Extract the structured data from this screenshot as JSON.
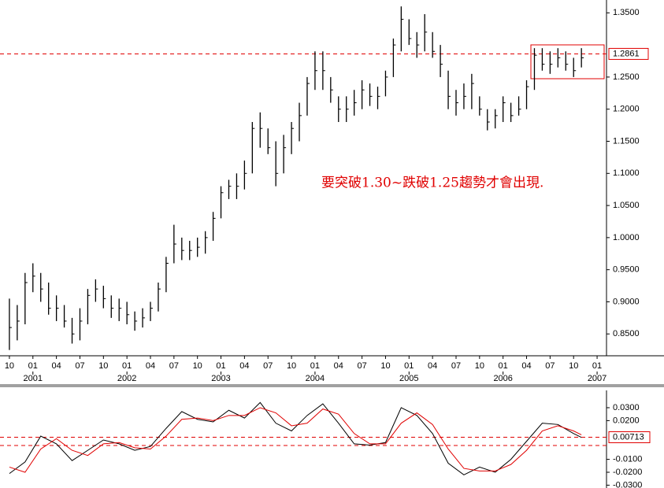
{
  "chart_data": [
    {
      "type": "ohlc",
      "annotation": "要突破1.30~跌破1.25趨勢才會出現.",
      "x": [
        0,
        1,
        2,
        3,
        4,
        5,
        6,
        7,
        8,
        9,
        10,
        11,
        12,
        13,
        14,
        15,
        16,
        17,
        18,
        19,
        20,
        21,
        22,
        23,
        24,
        25,
        26,
        27,
        28,
        29,
        30,
        31,
        32,
        33,
        34,
        35,
        36,
        37,
        38,
        39,
        40,
        41,
        42,
        43,
        44,
        45,
        46,
        47,
        48,
        49,
        50,
        51,
        52,
        53,
        54,
        55,
        56,
        57,
        58,
        59,
        60,
        61,
        62,
        63,
        64,
        65,
        66,
        67,
        68,
        69,
        70,
        71,
        72,
        73
      ],
      "high": [
        0.905,
        0.895,
        0.945,
        0.96,
        0.945,
        0.93,
        0.91,
        0.895,
        0.875,
        0.89,
        0.92,
        0.935,
        0.925,
        0.91,
        0.905,
        0.9,
        0.885,
        0.89,
        0.9,
        0.93,
        0.97,
        1.02,
        1.0,
        0.995,
        1.0,
        1.01,
        1.04,
        1.08,
        1.09,
        1.1,
        1.12,
        1.18,
        1.195,
        1.17,
        1.15,
        1.16,
        1.18,
        1.21,
        1.25,
        1.29,
        1.29,
        1.25,
        1.22,
        1.22,
        1.23,
        1.245,
        1.24,
        1.235,
        1.26,
        1.31,
        1.36,
        1.34,
        1.32,
        1.348,
        1.32,
        1.3,
        1.26,
        1.23,
        1.24,
        1.255,
        1.22,
        1.2,
        1.2,
        1.22,
        1.21,
        1.22,
        1.245,
        1.295,
        1.295,
        1.29,
        1.295,
        1.29,
        1.28,
        1.295
      ],
      "low": [
        0.825,
        0.84,
        0.865,
        0.915,
        0.9,
        0.88,
        0.87,
        0.86,
        0.835,
        0.84,
        0.865,
        0.9,
        0.89,
        0.875,
        0.87,
        0.865,
        0.855,
        0.86,
        0.87,
        0.885,
        0.915,
        0.96,
        0.965,
        0.965,
        0.97,
        0.975,
        0.995,
        1.03,
        1.06,
        1.06,
        1.075,
        1.1,
        1.14,
        1.13,
        1.08,
        1.1,
        1.13,
        1.15,
        1.19,
        1.23,
        1.23,
        1.21,
        1.18,
        1.18,
        1.19,
        1.2,
        1.205,
        1.2,
        1.22,
        1.25,
        1.29,
        1.3,
        1.28,
        1.29,
        1.28,
        1.25,
        1.2,
        1.19,
        1.2,
        1.2,
        1.19,
        1.167,
        1.17,
        1.18,
        1.18,
        1.19,
        1.2,
        1.23,
        1.26,
        1.255,
        1.265,
        1.26,
        1.25,
        1.265
      ],
      "close": [
        0.86,
        0.87,
        0.93,
        0.94,
        0.92,
        0.89,
        0.89,
        0.87,
        0.85,
        0.87,
        0.91,
        0.92,
        0.905,
        0.89,
        0.89,
        0.88,
        0.87,
        0.875,
        0.89,
        0.92,
        0.96,
        0.99,
        0.98,
        0.98,
        0.985,
        1.0,
        1.03,
        1.07,
        1.08,
        1.08,
        1.1,
        1.17,
        1.17,
        1.14,
        1.1,
        1.14,
        1.17,
        1.19,
        1.24,
        1.26,
        1.26,
        1.23,
        1.2,
        1.2,
        1.21,
        1.23,
        1.22,
        1.22,
        1.25,
        1.3,
        1.34,
        1.31,
        1.3,
        1.32,
        1.29,
        1.27,
        1.22,
        1.21,
        1.22,
        1.24,
        1.2,
        1.18,
        1.19,
        1.21,
        1.19,
        1.2,
        1.235,
        1.284,
        1.27,
        1.27,
        1.28,
        1.27,
        1.26,
        1.28
      ],
      "color": "#000000",
      "ref_line": 1.2861,
      "ref_color": "#e00000",
      "xlim": [
        -1.2,
        76.2
      ],
      "ylim": [
        0.816,
        1.37
      ],
      "yticks": [
        {
          "value": 1.35,
          "label": "1.3500"
        },
        {
          "value": 1.25,
          "label": "1.2500"
        },
        {
          "value": 1.2,
          "label": "1.2000"
        },
        {
          "value": 1.15,
          "label": "1.1500"
        },
        {
          "value": 1.1,
          "label": "1.1000"
        },
        {
          "value": 1.05,
          "label": "1.0500"
        },
        {
          "value": 1.0,
          "label": "1.0000"
        },
        {
          "value": 0.95,
          "label": "0.9500"
        },
        {
          "value": 0.9,
          "label": "0.9000"
        },
        {
          "value": 0.85,
          "label": "0.8500"
        }
      ],
      "xticks": [
        {
          "value": 0,
          "label": "10"
        },
        {
          "value": 3,
          "label": "01"
        },
        {
          "value": 6,
          "label": "04"
        },
        {
          "value": 9,
          "label": "07"
        },
        {
          "value": 12,
          "label": "10"
        },
        {
          "value": 15,
          "label": "01"
        },
        {
          "value": 18,
          "label": "04"
        },
        {
          "value": 21,
          "label": "07"
        },
        {
          "value": 24,
          "label": "10"
        },
        {
          "value": 27,
          "label": "01"
        },
        {
          "value": 30,
          "label": "04"
        },
        {
          "value": 33,
          "label": "07"
        },
        {
          "value": 36,
          "label": "10"
        },
        {
          "value": 39,
          "label": "01"
        },
        {
          "value": 42,
          "label": "04"
        },
        {
          "value": 45,
          "label": "07"
        },
        {
          "value": 48,
          "label": "10"
        },
        {
          "value": 51,
          "label": "01"
        },
        {
          "value": 54,
          "label": "04"
        },
        {
          "value": 57,
          "label": "07"
        },
        {
          "value": 60,
          "label": "10"
        },
        {
          "value": 63,
          "label": "01"
        },
        {
          "value": 66,
          "label": "04"
        },
        {
          "value": 69,
          "label": "07"
        },
        {
          "value": 72,
          "label": "10"
        },
        {
          "value": 75,
          "label": "01"
        }
      ],
      "year_ticks": [
        {
          "value": 3,
          "label": "2001"
        },
        {
          "value": 15,
          "label": "2002"
        },
        {
          "value": 27,
          "label": "2003"
        },
        {
          "value": 39,
          "label": "2004"
        },
        {
          "value": 51,
          "label": "2005"
        },
        {
          "value": 63,
          "label": "2006"
        },
        {
          "value": 75,
          "label": "2007"
        }
      ]
    },
    {
      "type": "line",
      "x": [
        0,
        2,
        4,
        6,
        8,
        10,
        12,
        14,
        16,
        18,
        20,
        22,
        24,
        26,
        28,
        30,
        32,
        34,
        36,
        38,
        40,
        42,
        44,
        46,
        48,
        50,
        52,
        54,
        56,
        58,
        60,
        62,
        64,
        66,
        68,
        70,
        72,
        73
      ],
      "series": [
        {
          "color": "#000000",
          "values": [
            -0.021,
            -0.012,
            0.008,
            0.002,
            -0.011,
            -0.003,
            0.005,
            0.002,
            -0.003,
            0.0,
            0.014,
            0.027,
            0.021,
            0.019,
            0.028,
            0.022,
            0.034,
            0.018,
            0.012,
            0.024,
            0.033,
            0.018,
            0.002,
            0.001,
            0.003,
            0.03,
            0.024,
            0.01,
            -0.013,
            -0.022,
            -0.016,
            -0.02,
            -0.01,
            0.004,
            0.018,
            0.017,
            0.01,
            0.007
          ]
        },
        {
          "color": "#e00000",
          "values": [
            -0.016,
            -0.02,
            -0.002,
            0.006,
            -0.003,
            -0.007,
            0.002,
            0.003,
            -0.001,
            -0.002,
            0.008,
            0.021,
            0.022,
            0.02,
            0.024,
            0.024,
            0.03,
            0.026,
            0.016,
            0.018,
            0.029,
            0.025,
            0.01,
            0.002,
            0.002,
            0.018,
            0.026,
            0.017,
            -0.002,
            -0.017,
            -0.019,
            -0.019,
            -0.014,
            -0.003,
            0.012,
            0.016,
            0.012,
            0.009
          ]
        }
      ],
      "ref_lines": [
        0.00713,
        0.0007
      ],
      "ref_color": "#e00000",
      "xlim": [
        -1.2,
        76.2
      ],
      "ylim": [
        -0.0322,
        0.0434
      ],
      "yticks": [
        {
          "value": 0.03,
          "label": "0.0300"
        },
        {
          "value": 0.02,
          "label": "0.0200"
        },
        {
          "value": -0.01,
          "label": "-0.0100"
        },
        {
          "value": -0.02,
          "label": "-0.0200"
        },
        {
          "value": -0.03,
          "label": "-0.0300"
        }
      ]
    }
  ]
}
